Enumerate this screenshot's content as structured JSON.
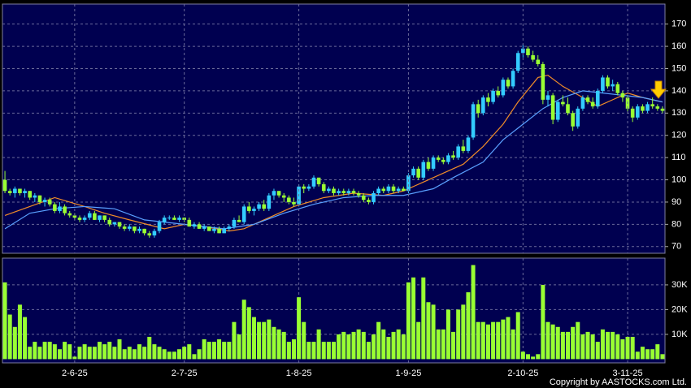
{
  "chart_data": [
    {
      "type": "candlestick",
      "xlim": [
        -0.5,
        132.5
      ],
      "ylim": [
        67,
        179
      ],
      "yticks": [
        70,
        80,
        90,
        100,
        110,
        120,
        130,
        140,
        150,
        160,
        170
      ],
      "grid": true,
      "up_color": "#33ccff",
      "down_color": "#99ff33",
      "ohlc": [
        [
          100,
          104,
          94,
          95
        ],
        [
          95,
          96,
          93,
          94
        ],
        [
          94,
          97,
          92,
          96
        ],
        [
          96,
          96,
          93,
          94
        ],
        [
          94,
          96,
          92,
          95
        ],
        [
          95,
          95,
          91,
          92
        ],
        [
          92,
          94,
          90,
          93
        ],
        [
          93,
          93,
          89,
          90
        ],
        [
          90,
          92,
          88,
          91
        ],
        [
          91,
          92,
          88,
          89
        ],
        [
          89,
          90,
          85,
          86
        ],
        [
          86,
          90,
          85,
          88
        ],
        [
          88,
          89,
          84,
          85
        ],
        [
          85,
          86,
          83,
          84
        ],
        [
          84,
          85,
          82,
          83
        ],
        [
          83,
          84,
          81,
          82
        ],
        [
          82,
          84,
          81,
          83
        ],
        [
          83,
          86,
          82,
          85
        ],
        [
          85,
          86,
          82,
          82
        ],
        [
          82,
          84,
          81,
          84
        ],
        [
          84,
          84,
          81,
          82
        ],
        [
          82,
          83,
          79,
          80
        ],
        [
          80,
          81,
          79,
          81
        ],
        [
          81,
          81,
          78,
          79
        ],
        [
          79,
          80,
          77,
          78
        ],
        [
          78,
          80,
          77,
          79
        ],
        [
          79,
          79,
          76,
          77
        ],
        [
          77,
          79,
          76,
          78
        ],
        [
          78,
          78,
          75,
          76
        ],
        [
          76,
          77,
          74,
          75
        ],
        [
          75,
          78,
          74,
          77
        ],
        [
          77,
          82,
          76,
          81
        ],
        [
          81,
          84,
          80,
          83
        ],
        [
          83,
          84,
          82,
          83
        ],
        [
          83,
          84,
          82,
          82
        ],
        [
          82,
          84,
          81,
          83
        ],
        [
          83,
          83,
          81,
          82
        ],
        [
          82,
          83,
          79,
          79
        ],
        [
          79,
          81,
          78,
          80
        ],
        [
          80,
          81,
          78,
          78
        ],
        [
          78,
          80,
          77,
          79
        ],
        [
          79,
          79,
          77,
          77
        ],
        [
          77,
          79,
          76,
          78
        ],
        [
          78,
          79,
          76,
          76
        ],
        [
          76,
          79,
          76,
          78
        ],
        [
          78,
          80,
          77,
          79
        ],
        [
          79,
          83,
          78,
          82
        ],
        [
          82,
          84,
          81,
          81
        ],
        [
          81,
          89,
          80,
          88
        ],
        [
          88,
          90,
          85,
          86
        ],
        [
          86,
          88,
          84,
          87
        ],
        [
          87,
          90,
          86,
          89
        ],
        [
          89,
          91,
          86,
          87
        ],
        [
          87,
          94,
          86,
          93
        ],
        [
          93,
          96,
          91,
          95
        ],
        [
          95,
          95,
          92,
          93
        ],
        [
          93,
          94,
          90,
          92
        ],
        [
          92,
          93,
          89,
          90
        ],
        [
          90,
          92,
          88,
          89
        ],
        [
          89,
          98,
          88,
          97
        ],
        [
          97,
          98,
          94,
          96
        ],
        [
          96,
          98,
          95,
          97
        ],
        [
          97,
          102,
          96,
          101
        ],
        [
          101,
          101,
          97,
          98
        ],
        [
          98,
          99,
          94,
          95
        ],
        [
          95,
          97,
          94,
          96
        ],
        [
          96,
          97,
          93,
          94
        ],
        [
          94,
          96,
          93,
          95
        ],
        [
          95,
          96,
          93,
          94
        ],
        [
          94,
          96,
          93,
          95
        ],
        [
          95,
          96,
          93,
          94
        ],
        [
          94,
          95,
          92,
          93
        ],
        [
          93,
          94,
          90,
          91
        ],
        [
          91,
          92,
          89,
          90
        ],
        [
          90,
          95,
          89,
          94
        ],
        [
          94,
          97,
          93,
          96
        ],
        [
          96,
          97,
          94,
          95
        ],
        [
          95,
          98,
          94,
          97
        ],
        [
          97,
          98,
          94,
          95
        ],
        [
          95,
          97,
          94,
          96
        ],
        [
          96,
          97,
          95,
          95
        ],
        [
          95,
          103,
          94,
          102
        ],
        [
          102,
          106,
          101,
          105
        ],
        [
          105,
          106,
          100,
          101
        ],
        [
          101,
          109,
          100,
          108
        ],
        [
          108,
          110,
          104,
          105
        ],
        [
          105,
          111,
          104,
          110
        ],
        [
          110,
          111,
          108,
          109
        ],
        [
          109,
          110,
          107,
          108
        ],
        [
          108,
          112,
          107,
          111
        ],
        [
          111,
          113,
          109,
          110
        ],
        [
          110,
          116,
          109,
          115
        ],
        [
          115,
          118,
          112,
          113
        ],
        [
          113,
          120,
          112,
          119
        ],
        [
          119,
          135,
          118,
          134
        ],
        [
          134,
          136,
          128,
          130
        ],
        [
          130,
          138,
          129,
          137
        ],
        [
          137,
          139,
          133,
          135
        ],
        [
          135,
          141,
          134,
          140
        ],
        [
          140,
          142,
          137,
          138
        ],
        [
          138,
          146,
          137,
          145
        ],
        [
          145,
          146,
          141,
          142
        ],
        [
          142,
          150,
          141,
          149
        ],
        [
          149,
          158,
          148,
          157
        ],
        [
          157,
          161,
          155,
          159
        ],
        [
          159,
          160,
          155,
          156
        ],
        [
          156,
          158,
          153,
          154
        ],
        [
          154,
          156,
          151,
          152
        ],
        [
          152,
          153,
          134,
          136
        ],
        [
          136,
          140,
          133,
          138
        ],
        [
          138,
          139,
          125,
          127
        ],
        [
          127,
          136,
          126,
          135
        ],
        [
          135,
          138,
          133,
          134
        ],
        [
          134,
          137,
          129,
          130
        ],
        [
          130,
          131,
          122,
          124
        ],
        [
          124,
          133,
          123,
          132
        ],
        [
          132,
          138,
          131,
          137
        ],
        [
          137,
          138,
          134,
          135
        ],
        [
          135,
          137,
          132,
          133
        ],
        [
          133,
          141,
          132,
          140
        ],
        [
          140,
          147,
          139,
          146
        ],
        [
          146,
          147,
          141,
          142
        ],
        [
          142,
          145,
          140,
          143
        ],
        [
          143,
          144,
          138,
          139
        ],
        [
          139,
          140,
          135,
          137
        ],
        [
          137,
          138,
          130,
          132
        ],
        [
          132,
          133,
          126,
          128
        ],
        [
          128,
          134,
          127,
          133
        ],
        [
          133,
          134,
          130,
          131
        ],
        [
          131,
          135,
          130,
          134
        ],
        [
          134,
          137,
          132,
          133
        ],
        [
          133,
          134,
          131,
          132
        ],
        [
          132,
          133,
          130,
          131
        ]
      ],
      "series": [
        {
          "color": "#f08c28",
          "x": [
            0,
            5,
            10,
            16,
            20,
            25,
            32,
            36,
            40,
            45,
            48,
            54,
            58,
            64,
            70,
            76,
            80,
            84,
            88,
            92,
            96,
            100,
            103,
            107,
            109,
            112,
            116,
            119,
            122,
            125,
            128,
            132
          ],
          "values": [
            84,
            88,
            92,
            88,
            85,
            82,
            78,
            80,
            79,
            77,
            78,
            84,
            88,
            92,
            94,
            93,
            95,
            99,
            103,
            107,
            115,
            125,
            135,
            146,
            147,
            142,
            137,
            133,
            136,
            139,
            137,
            135
          ]
        },
        {
          "color": "#5aa0ff",
          "x": [
            0,
            5,
            10,
            16,
            22,
            28,
            36,
            44,
            50,
            56,
            62,
            68,
            74,
            80,
            86,
            90,
            96,
            100,
            104,
            108,
            112,
            116,
            120,
            124,
            128,
            132
          ],
          "values": [
            78,
            85,
            87,
            88,
            87,
            82,
            80,
            78,
            80,
            85,
            89,
            92,
            93,
            93,
            96,
            101,
            108,
            118,
            125,
            132,
            137,
            140,
            139,
            138,
            137,
            135
          ]
        }
      ]
    },
    {
      "type": "bar",
      "xlim": [
        -0.5,
        132.5
      ],
      "ylim": [
        -1500,
        40800
      ],
      "yticks": [
        {
          "value": 10000,
          "label": "10K"
        },
        {
          "value": 20000,
          "label": "20K"
        },
        {
          "value": 30000,
          "label": "30K"
        }
      ],
      "xticks": [
        {
          "value": 14,
          "label": "2-6-25"
        },
        {
          "value": 36,
          "label": "2-7-25"
        },
        {
          "value": 59,
          "label": "1-8-25"
        },
        {
          "value": 81,
          "label": "1-9-25"
        },
        {
          "value": 104,
          "label": "2-10-25"
        },
        {
          "value": 125,
          "label": "3-11-25"
        }
      ],
      "grid": true,
      "color": "#99ff33",
      "values": [
        31000,
        18000,
        13000,
        22000,
        17000,
        5000,
        7000,
        5000,
        7000,
        7000,
        6000,
        4000,
        7000,
        6000,
        1000,
        5000,
        6000,
        5000,
        5000,
        7000,
        6000,
        7000,
        5000,
        8000,
        4000,
        5000,
        4000,
        6000,
        5000,
        9000,
        6000,
        5000,
        4000,
        3000,
        3000,
        4000,
        5000,
        6000,
        2000,
        4000,
        8000,
        7000,
        7000,
        8000,
        7000,
        7000,
        15000,
        10000,
        24000,
        21000,
        17000,
        15000,
        15000,
        16000,
        13000,
        12000,
        11000,
        7000,
        8000,
        25000,
        15000,
        7000,
        7000,
        12000,
        7000,
        7000,
        7000,
        10000,
        11000,
        10000,
        11000,
        12000,
        11000,
        7000,
        10000,
        15000,
        12000,
        9000,
        11000,
        12000,
        10000,
        31000,
        33000,
        15000,
        33000,
        23000,
        22000,
        12000,
        12000,
        20000,
        11000,
        20000,
        22000,
        27000,
        38000,
        15000,
        15000,
        14000,
        15000,
        15000,
        16000,
        17000,
        12000,
        19000,
        3000,
        2000,
        1000,
        2000,
        30000,
        15000,
        14000,
        13000,
        11000,
        11000,
        13000,
        15000,
        10000,
        11000,
        10000,
        7000,
        12000,
        11000,
        11000,
        10000,
        8000,
        9000,
        9000,
        3000,
        5000,
        4000,
        4000,
        6000,
        2000
      ]
    }
  ],
  "copyright": "Copyright by AASTOCKS.com Ltd."
}
